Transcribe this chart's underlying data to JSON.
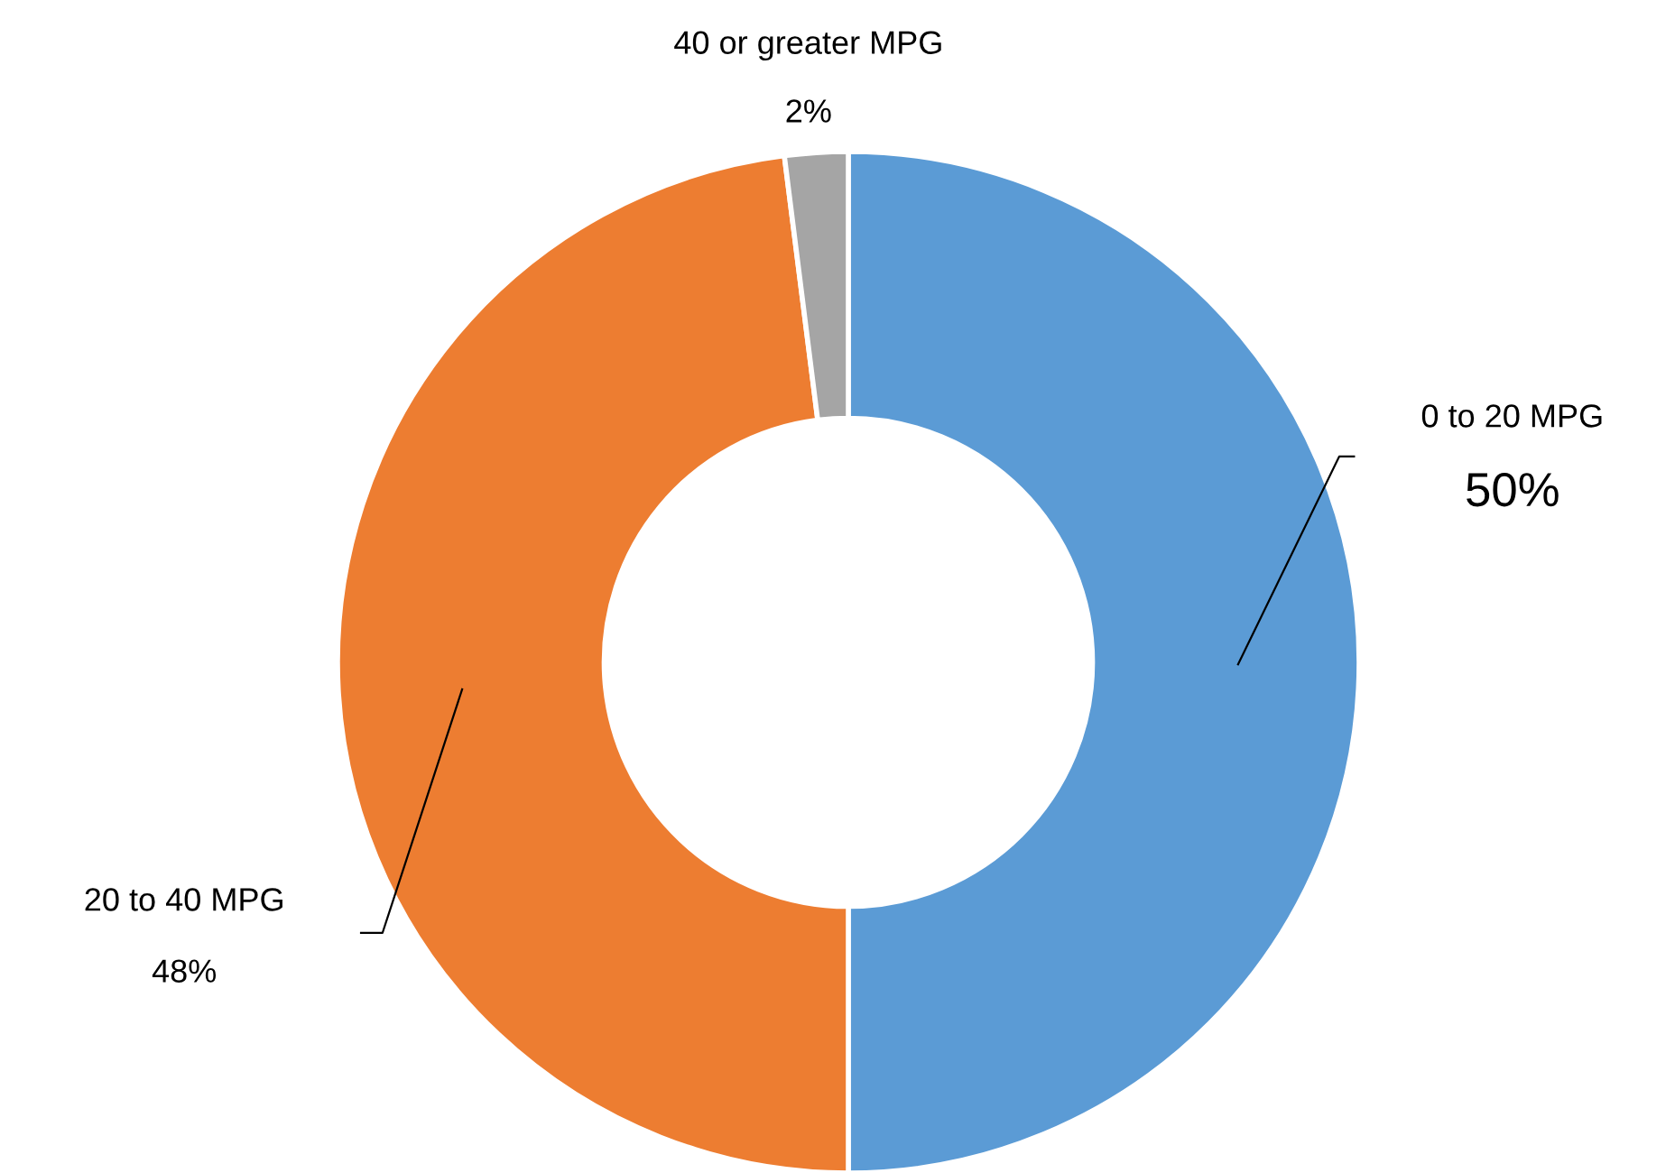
{
  "chart_data": {
    "type": "donut",
    "categories": [
      "0 to 20 MPG",
      "20 to 40 MPG",
      "40 or greater MPG"
    ],
    "values": [
      50,
      48,
      2
    ],
    "colors": [
      "#5b9bd5",
      "#ed7d31",
      "#a5a5a5"
    ],
    "value_labels": [
      "50%",
      "48%",
      "2%"
    ]
  }
}
